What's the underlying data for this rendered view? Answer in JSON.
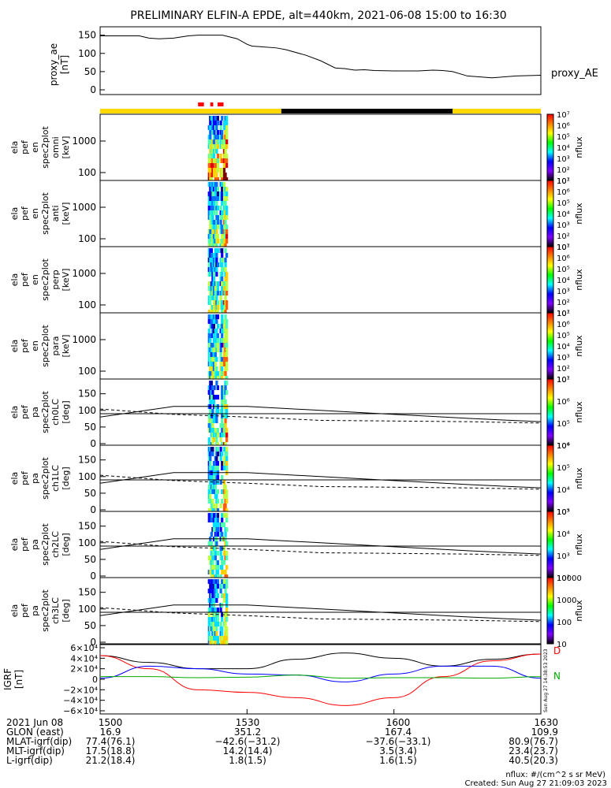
{
  "title": "PRELIMINARY ELFIN-A EPDE, alt=440km, 2021-06-08 15:00 to 16:30",
  "chart_data": {
    "type": "line",
    "x_range": [
      "15:00",
      "16:30"
    ],
    "panels": [
      {
        "id": "proxy_ae",
        "ylabel": [
          "proxy_ae",
          "[nT]"
        ],
        "series_label": "proxy_AE",
        "ylim": [
          0,
          160
        ],
        "yticks": [
          "0",
          "50",
          "100",
          "150"
        ],
        "series": [
          {
            "name": "proxy_AE",
            "x": [
              0,
              5,
              8,
              10,
              12,
              15,
              18,
              20,
              25,
              28,
              30,
              31,
              33,
              36,
              38,
              42,
              45,
              48,
              50,
              52,
              54,
              56,
              60,
              65,
              68,
              70,
              72,
              75,
              80,
              85,
              90
            ],
            "y": [
              148,
              148,
              148,
              142,
              140,
              142,
              148,
              150,
              150,
              140,
              125,
              120,
              118,
              115,
              110,
              95,
              80,
              60,
              58,
              54,
              55,
              53,
              52,
              52,
              54,
              53,
              50,
              38,
              33,
              38,
              40
            ]
          }
        ]
      },
      {
        "id": "pa_spectra",
        "ylabels": [
          "0",
          "50",
          "100",
          "150"
        ],
        "ylim": [
          0,
          180
        ],
        "panels": [
          {
            "label": [
              "ela",
              "pef",
              "pa",
              "spec2plot",
              "ch0LC",
              "[deg]"
            ],
            "cbar_ticks": [
              "10⁴",
              "10⁵",
              "10⁶",
              "10⁷"
            ]
          },
          {
            "label": [
              "ela",
              "pef",
              "pa",
              "spec2plot",
              "ch1LC",
              "[deg]"
            ],
            "cbar_ticks": [
              "10³",
              "10⁴",
              "10⁵",
              "10⁶"
            ]
          },
          {
            "label": [
              "ela",
              "pef",
              "pa",
              "spec2plot",
              "ch2LC",
              "[deg]"
            ],
            "cbar_ticks": [
              "10²",
              "10³",
              "10⁴",
              "10⁵"
            ]
          },
          {
            "label": [
              "ela",
              "pef",
              "pa",
              "spec2plot",
              "ch3LC",
              "[deg]"
            ],
            "cbar_ticks": [
              "10",
              "100",
              "1000",
              "10000"
            ]
          }
        ],
        "loss_cone": {
          "x": [
            0,
            15,
            30,
            45,
            60,
            75,
            90
          ],
          "solid_upper": [
            80,
            112,
            112,
            100,
            88,
            76,
            66
          ],
          "dashed": [
            104,
            88,
            80,
            70,
            68,
            66,
            62
          ],
          "flat": 90
        }
      },
      {
        "id": "energy_spectra",
        "yticks": [
          "100",
          "1000"
        ],
        "cbar_ticks": [
          "10¹",
          "10²",
          "10³",
          "10⁴",
          "10⁵",
          "10⁶",
          "10⁷"
        ],
        "panels": [
          {
            "label": [
              "ela",
              "pef",
              "en",
              "spec2plot",
              "omni",
              "[keV]"
            ]
          },
          {
            "label": [
              "ela",
              "pef",
              "en",
              "spec2plot",
              "anti",
              "[keV]"
            ]
          },
          {
            "label": [
              "ela",
              "pef",
              "en",
              "spec2plot",
              "perp",
              "[keV]"
            ]
          },
          {
            "label": [
              "ela",
              "pef",
              "en",
              "spec2plot",
              "para",
              "[keV]"
            ]
          }
        ]
      },
      {
        "id": "igrf",
        "ylabel": [
          "IGRF",
          "[nT]"
        ],
        "ylim": [
          -60000,
          60000
        ],
        "yticks": [
          "6×10⁴",
          "4×10⁴",
          "2×10⁴",
          "0",
          "−2×10⁴",
          "−4×10⁴",
          "−6×10⁴"
        ],
        "series": [
          {
            "color": "#000000",
            "x": [
              0,
              10,
              20,
              30,
              40,
              50,
              60,
              70,
              80,
              90
            ],
            "y": [
              45000,
              32000,
              20000,
              20000,
              38000,
              50000,
              40000,
              25000,
              38000,
              48000
            ]
          },
          {
            "color": "#ff0000",
            "x": [
              0,
              10,
              20,
              30,
              40,
              50,
              60,
              70,
              80,
              90
            ],
            "y": [
              45000,
              20000,
              -20000,
              -25000,
              -35000,
              -50000,
              -35000,
              5000,
              35000,
              48000
            ]
          },
          {
            "color": "#0000ff",
            "x": [
              0,
              10,
              20,
              30,
              40,
              50,
              60,
              70,
              80,
              90
            ],
            "y": [
              2000,
              25000,
              20000,
              10000,
              8000,
              -5000,
              10000,
              25000,
              25000,
              2000
            ]
          },
          {
            "color": "#00aa00",
            "x": [
              0,
              10,
              20,
              30,
              40,
              50,
              60,
              70,
              80,
              90
            ],
            "y": [
              5000,
              5000,
              3000,
              4000,
              8000,
              2000,
              3000,
              3000,
              2000,
              5000
            ]
          }
        ],
        "side_labels": [
          "D",
          "N"
        ],
        "side_label_colors": [
          "#ff0000",
          "#00aa00"
        ],
        "stamp": "Sun Aug 27 14:38:53 2023"
      }
    ],
    "orbit_bar": {
      "segments": [
        {
          "from": 0,
          "to": 37,
          "color": "#ffd800"
        },
        {
          "from": 37,
          "to": 72,
          "color": "#000000"
        },
        {
          "from": 72,
          "to": 90,
          "color": "#ffd800"
        }
      ],
      "markers": [
        {
          "from": 20,
          "to": 21.2,
          "color": "#ff0000"
        },
        {
          "from": 22.5,
          "to": 23.1,
          "color": "#ff0000"
        },
        {
          "from": 24,
          "to": 25.2,
          "color": "#ff0000"
        }
      ]
    },
    "colorbar_unit": "nflux"
  },
  "footer": {
    "rows": [
      [
        "2021 Jun 08",
        "1500",
        "1530",
        "1600",
        "1630"
      ],
      [
        "GLON (east)",
        "16.9",
        "351.2",
        "167.4",
        "109.9"
      ],
      [
        "MLAT-igrf(dip)",
        "77.4(76.1)",
        "−42.6(−31.2)",
        "−37.6(−33.1)",
        "80.9(76.7)"
      ],
      [
        "MLT-igrf(dip)",
        "17.5(18.8)",
        "14.2(14.4)",
        "3.5(3.4)",
        "23.4(23.7)"
      ],
      [
        "L-igrf(dip)",
        "21.2(18.4)",
        "1.8(1.5)",
        "1.6(1.5)",
        "40.5(20.3)"
      ]
    ],
    "unit_note": "nflux: #/(cm^2 s sr MeV)",
    "created": "Created: Sun Aug 27 21:09:03 2023"
  }
}
